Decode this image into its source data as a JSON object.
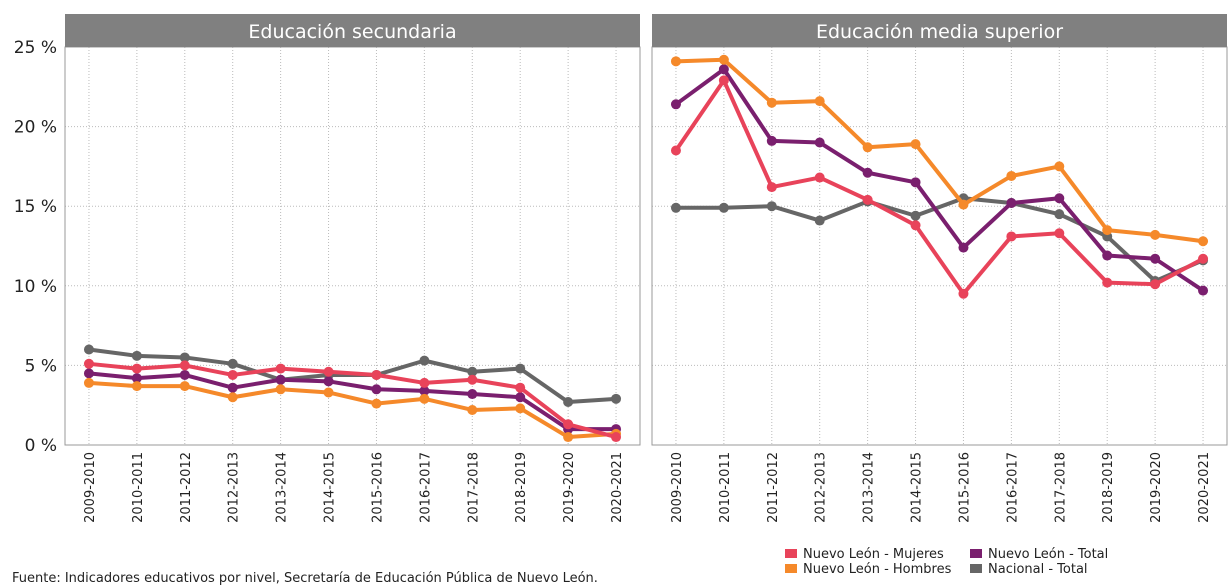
{
  "chart_data": [
    {
      "type": "line",
      "title": "Educación secundaria",
      "categories": [
        "2009-2010",
        "2010-2011",
        "2011-2012",
        "2012-2013",
        "2013-2014",
        "2014-2015",
        "2015-2016",
        "2016-2017",
        "2017-2018",
        "2018-2019",
        "2019-2020",
        "2020-2021"
      ],
      "ylim": [
        0,
        25
      ],
      "yticks": [
        {
          "value": 0,
          "label": "0 %"
        },
        {
          "value": 5,
          "label": "5 %"
        },
        {
          "value": 10,
          "label": "10 %"
        },
        {
          "value": 15,
          "label": "15 %"
        },
        {
          "value": 20,
          "label": "20 %"
        },
        {
          "value": 25,
          "label": "25 %"
        }
      ],
      "grid": true,
      "series": [
        {
          "name": "Nuevo León - Mujeres",
          "color": "#e8435a",
          "values": [
            5.1,
            4.8,
            5.0,
            4.4,
            4.8,
            4.6,
            4.4,
            3.9,
            4.1,
            3.6,
            1.3,
            0.5
          ]
        },
        {
          "name": "Nuevo León - Hombres",
          "color": "#f5892a",
          "values": [
            3.9,
            3.7,
            3.7,
            3.0,
            3.5,
            3.3,
            2.6,
            2.9,
            2.2,
            2.3,
            0.5,
            0.7
          ]
        },
        {
          "name": "Nuevo León - Total",
          "color": "#7a1f6e",
          "values": [
            4.5,
            4.2,
            4.4,
            3.6,
            4.1,
            4.0,
            3.5,
            3.4,
            3.2,
            3.0,
            1.0,
            1.0
          ]
        },
        {
          "name": "Nacional - Total",
          "color": "#666666",
          "values": [
            6.0,
            5.6,
            5.5,
            5.1,
            4.1,
            4.4,
            4.4,
            5.3,
            4.6,
            4.8,
            2.7,
            2.9
          ]
        }
      ]
    },
    {
      "type": "line",
      "title": "Educación media superior",
      "categories": [
        "2009-2010",
        "2010-2011",
        "2011-2012",
        "2012-2013",
        "2013-2014",
        "2014-2015",
        "2015-2016",
        "2016-2017",
        "2017-2018",
        "2018-2019",
        "2019-2020",
        "2020-2021"
      ],
      "series": [
        {
          "values": [
            18.5,
            22.9,
            16.2,
            16.8,
            15.4,
            13.8,
            9.5,
            13.1,
            13.3,
            10.2,
            10.1,
            11.7
          ]
        },
        {
          "values": [
            24.1,
            24.2,
            21.5,
            21.6,
            18.7,
            18.9,
            15.1,
            16.9,
            17.5,
            13.5,
            13.2,
            12.8
          ]
        },
        {
          "values": [
            21.4,
            23.6,
            19.1,
            19.0,
            17.1,
            16.5,
            12.4,
            15.2,
            15.5,
            11.9,
            11.7,
            9.7
          ]
        },
        {
          "values": [
            14.9,
            14.9,
            15.0,
            14.1,
            15.3,
            14.4,
            15.5,
            15.2,
            14.5,
            13.1,
            10.3,
            11.6
          ]
        }
      ]
    }
  ],
  "source": "Fuente: Indicadores educativos por nivel, Secretaría de Educación Pública de Nuevo León."
}
